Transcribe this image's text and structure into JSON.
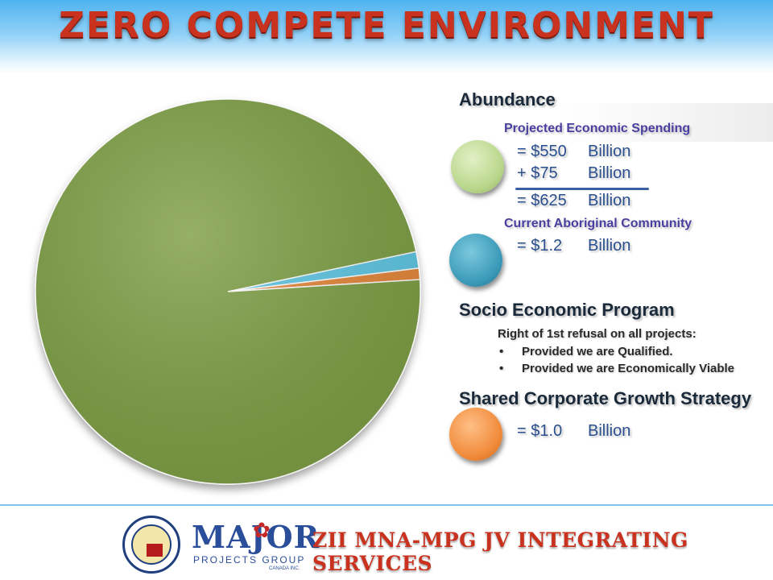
{
  "header": {
    "title": "ZERO COMPETE ENVIRONMENT"
  },
  "chart_data": {
    "type": "pie",
    "slices": [
      {
        "name": "Projected Economic Spending",
        "value": 625,
        "color": "#7e9f45"
      },
      {
        "name": "Current Aboriginal Community",
        "value": 1.2,
        "color": "#5ec6e3"
      },
      {
        "name": "Shared Corporate Growth Strategy",
        "value": 1.0,
        "color": "#e5873b"
      }
    ]
  },
  "abundance": {
    "heading": "Abundance",
    "spending_label": "Projected Economic Spending",
    "rows": [
      {
        "op": "= $550",
        "unit": "Billion"
      },
      {
        "op": "+ $75",
        "unit": "Billion"
      },
      {
        "op": "= $625",
        "unit": "Billion"
      }
    ],
    "community_label": "Current Aboriginal Community",
    "community_row": {
      "op": "= $1.2",
      "unit": "Billion"
    },
    "colors": {
      "spending_dot": "#b8d68a",
      "community_dot": "#3a9ab8"
    }
  },
  "socio": {
    "heading": "Socio Economic Program",
    "intro": "Right of 1st refusal on all projects:",
    "bullets": [
      "Provided we are Qualified.",
      "Provided we are Economically Viable"
    ]
  },
  "growth": {
    "heading": "Shared Corporate Growth Strategy",
    "row": {
      "op": "= $1.0",
      "unit": "Billion"
    },
    "dot_color": "#f08a3a"
  },
  "footer": {
    "logo_name": "MAJOR",
    "logo_sub": "PROJECTS GROUP",
    "logo_sub2": "CANADA INC.",
    "title": "ZII MNA-MPG JV INTEGRATING SERVICES"
  }
}
